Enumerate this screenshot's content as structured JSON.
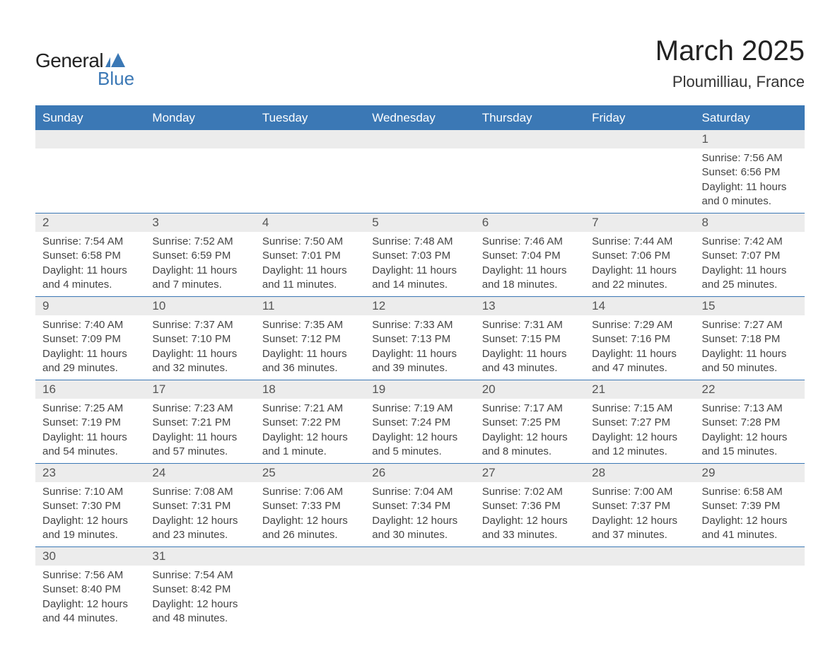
{
  "brand": {
    "name_part1": "General",
    "name_part2": "Blue",
    "color_primary": "#3b78b5",
    "color_text": "#222222"
  },
  "header": {
    "title": "March 2025",
    "location": "Ploumilliau, France"
  },
  "style": {
    "header_bg": "#3b78b5",
    "header_fg": "#ffffff",
    "daynum_bg": "#ececec",
    "row_divider": "#3b78b5",
    "body_text": "#444444",
    "page_bg": "#ffffff",
    "title_fontsize": 40,
    "subtitle_fontsize": 22,
    "th_fontsize": 17,
    "td_fontsize": 15
  },
  "weekdays": [
    "Sunday",
    "Monday",
    "Tuesday",
    "Wednesday",
    "Thursday",
    "Friday",
    "Saturday"
  ],
  "weeks": [
    [
      null,
      null,
      null,
      null,
      null,
      null,
      {
        "n": "1",
        "sunrise": "Sunrise: 7:56 AM",
        "sunset": "Sunset: 6:56 PM",
        "day1": "Daylight: 11 hours",
        "day2": "and 0 minutes."
      }
    ],
    [
      {
        "n": "2",
        "sunrise": "Sunrise: 7:54 AM",
        "sunset": "Sunset: 6:58 PM",
        "day1": "Daylight: 11 hours",
        "day2": "and 4 minutes."
      },
      {
        "n": "3",
        "sunrise": "Sunrise: 7:52 AM",
        "sunset": "Sunset: 6:59 PM",
        "day1": "Daylight: 11 hours",
        "day2": "and 7 minutes."
      },
      {
        "n": "4",
        "sunrise": "Sunrise: 7:50 AM",
        "sunset": "Sunset: 7:01 PM",
        "day1": "Daylight: 11 hours",
        "day2": "and 11 minutes."
      },
      {
        "n": "5",
        "sunrise": "Sunrise: 7:48 AM",
        "sunset": "Sunset: 7:03 PM",
        "day1": "Daylight: 11 hours",
        "day2": "and 14 minutes."
      },
      {
        "n": "6",
        "sunrise": "Sunrise: 7:46 AM",
        "sunset": "Sunset: 7:04 PM",
        "day1": "Daylight: 11 hours",
        "day2": "and 18 minutes."
      },
      {
        "n": "7",
        "sunrise": "Sunrise: 7:44 AM",
        "sunset": "Sunset: 7:06 PM",
        "day1": "Daylight: 11 hours",
        "day2": "and 22 minutes."
      },
      {
        "n": "8",
        "sunrise": "Sunrise: 7:42 AM",
        "sunset": "Sunset: 7:07 PM",
        "day1": "Daylight: 11 hours",
        "day2": "and 25 minutes."
      }
    ],
    [
      {
        "n": "9",
        "sunrise": "Sunrise: 7:40 AM",
        "sunset": "Sunset: 7:09 PM",
        "day1": "Daylight: 11 hours",
        "day2": "and 29 minutes."
      },
      {
        "n": "10",
        "sunrise": "Sunrise: 7:37 AM",
        "sunset": "Sunset: 7:10 PM",
        "day1": "Daylight: 11 hours",
        "day2": "and 32 minutes."
      },
      {
        "n": "11",
        "sunrise": "Sunrise: 7:35 AM",
        "sunset": "Sunset: 7:12 PM",
        "day1": "Daylight: 11 hours",
        "day2": "and 36 minutes."
      },
      {
        "n": "12",
        "sunrise": "Sunrise: 7:33 AM",
        "sunset": "Sunset: 7:13 PM",
        "day1": "Daylight: 11 hours",
        "day2": "and 39 minutes."
      },
      {
        "n": "13",
        "sunrise": "Sunrise: 7:31 AM",
        "sunset": "Sunset: 7:15 PM",
        "day1": "Daylight: 11 hours",
        "day2": "and 43 minutes."
      },
      {
        "n": "14",
        "sunrise": "Sunrise: 7:29 AM",
        "sunset": "Sunset: 7:16 PM",
        "day1": "Daylight: 11 hours",
        "day2": "and 47 minutes."
      },
      {
        "n": "15",
        "sunrise": "Sunrise: 7:27 AM",
        "sunset": "Sunset: 7:18 PM",
        "day1": "Daylight: 11 hours",
        "day2": "and 50 minutes."
      }
    ],
    [
      {
        "n": "16",
        "sunrise": "Sunrise: 7:25 AM",
        "sunset": "Sunset: 7:19 PM",
        "day1": "Daylight: 11 hours",
        "day2": "and 54 minutes."
      },
      {
        "n": "17",
        "sunrise": "Sunrise: 7:23 AM",
        "sunset": "Sunset: 7:21 PM",
        "day1": "Daylight: 11 hours",
        "day2": "and 57 minutes."
      },
      {
        "n": "18",
        "sunrise": "Sunrise: 7:21 AM",
        "sunset": "Sunset: 7:22 PM",
        "day1": "Daylight: 12 hours",
        "day2": "and 1 minute."
      },
      {
        "n": "19",
        "sunrise": "Sunrise: 7:19 AM",
        "sunset": "Sunset: 7:24 PM",
        "day1": "Daylight: 12 hours",
        "day2": "and 5 minutes."
      },
      {
        "n": "20",
        "sunrise": "Sunrise: 7:17 AM",
        "sunset": "Sunset: 7:25 PM",
        "day1": "Daylight: 12 hours",
        "day2": "and 8 minutes."
      },
      {
        "n": "21",
        "sunrise": "Sunrise: 7:15 AM",
        "sunset": "Sunset: 7:27 PM",
        "day1": "Daylight: 12 hours",
        "day2": "and 12 minutes."
      },
      {
        "n": "22",
        "sunrise": "Sunrise: 7:13 AM",
        "sunset": "Sunset: 7:28 PM",
        "day1": "Daylight: 12 hours",
        "day2": "and 15 minutes."
      }
    ],
    [
      {
        "n": "23",
        "sunrise": "Sunrise: 7:10 AM",
        "sunset": "Sunset: 7:30 PM",
        "day1": "Daylight: 12 hours",
        "day2": "and 19 minutes."
      },
      {
        "n": "24",
        "sunrise": "Sunrise: 7:08 AM",
        "sunset": "Sunset: 7:31 PM",
        "day1": "Daylight: 12 hours",
        "day2": "and 23 minutes."
      },
      {
        "n": "25",
        "sunrise": "Sunrise: 7:06 AM",
        "sunset": "Sunset: 7:33 PM",
        "day1": "Daylight: 12 hours",
        "day2": "and 26 minutes."
      },
      {
        "n": "26",
        "sunrise": "Sunrise: 7:04 AM",
        "sunset": "Sunset: 7:34 PM",
        "day1": "Daylight: 12 hours",
        "day2": "and 30 minutes."
      },
      {
        "n": "27",
        "sunrise": "Sunrise: 7:02 AM",
        "sunset": "Sunset: 7:36 PM",
        "day1": "Daylight: 12 hours",
        "day2": "and 33 minutes."
      },
      {
        "n": "28",
        "sunrise": "Sunrise: 7:00 AM",
        "sunset": "Sunset: 7:37 PM",
        "day1": "Daylight: 12 hours",
        "day2": "and 37 minutes."
      },
      {
        "n": "29",
        "sunrise": "Sunrise: 6:58 AM",
        "sunset": "Sunset: 7:39 PM",
        "day1": "Daylight: 12 hours",
        "day2": "and 41 minutes."
      }
    ],
    [
      {
        "n": "30",
        "sunrise": "Sunrise: 7:56 AM",
        "sunset": "Sunset: 8:40 PM",
        "day1": "Daylight: 12 hours",
        "day2": "and 44 minutes."
      },
      {
        "n": "31",
        "sunrise": "Sunrise: 7:54 AM",
        "sunset": "Sunset: 8:42 PM",
        "day1": "Daylight: 12 hours",
        "day2": "and 48 minutes."
      },
      null,
      null,
      null,
      null,
      null
    ]
  ]
}
